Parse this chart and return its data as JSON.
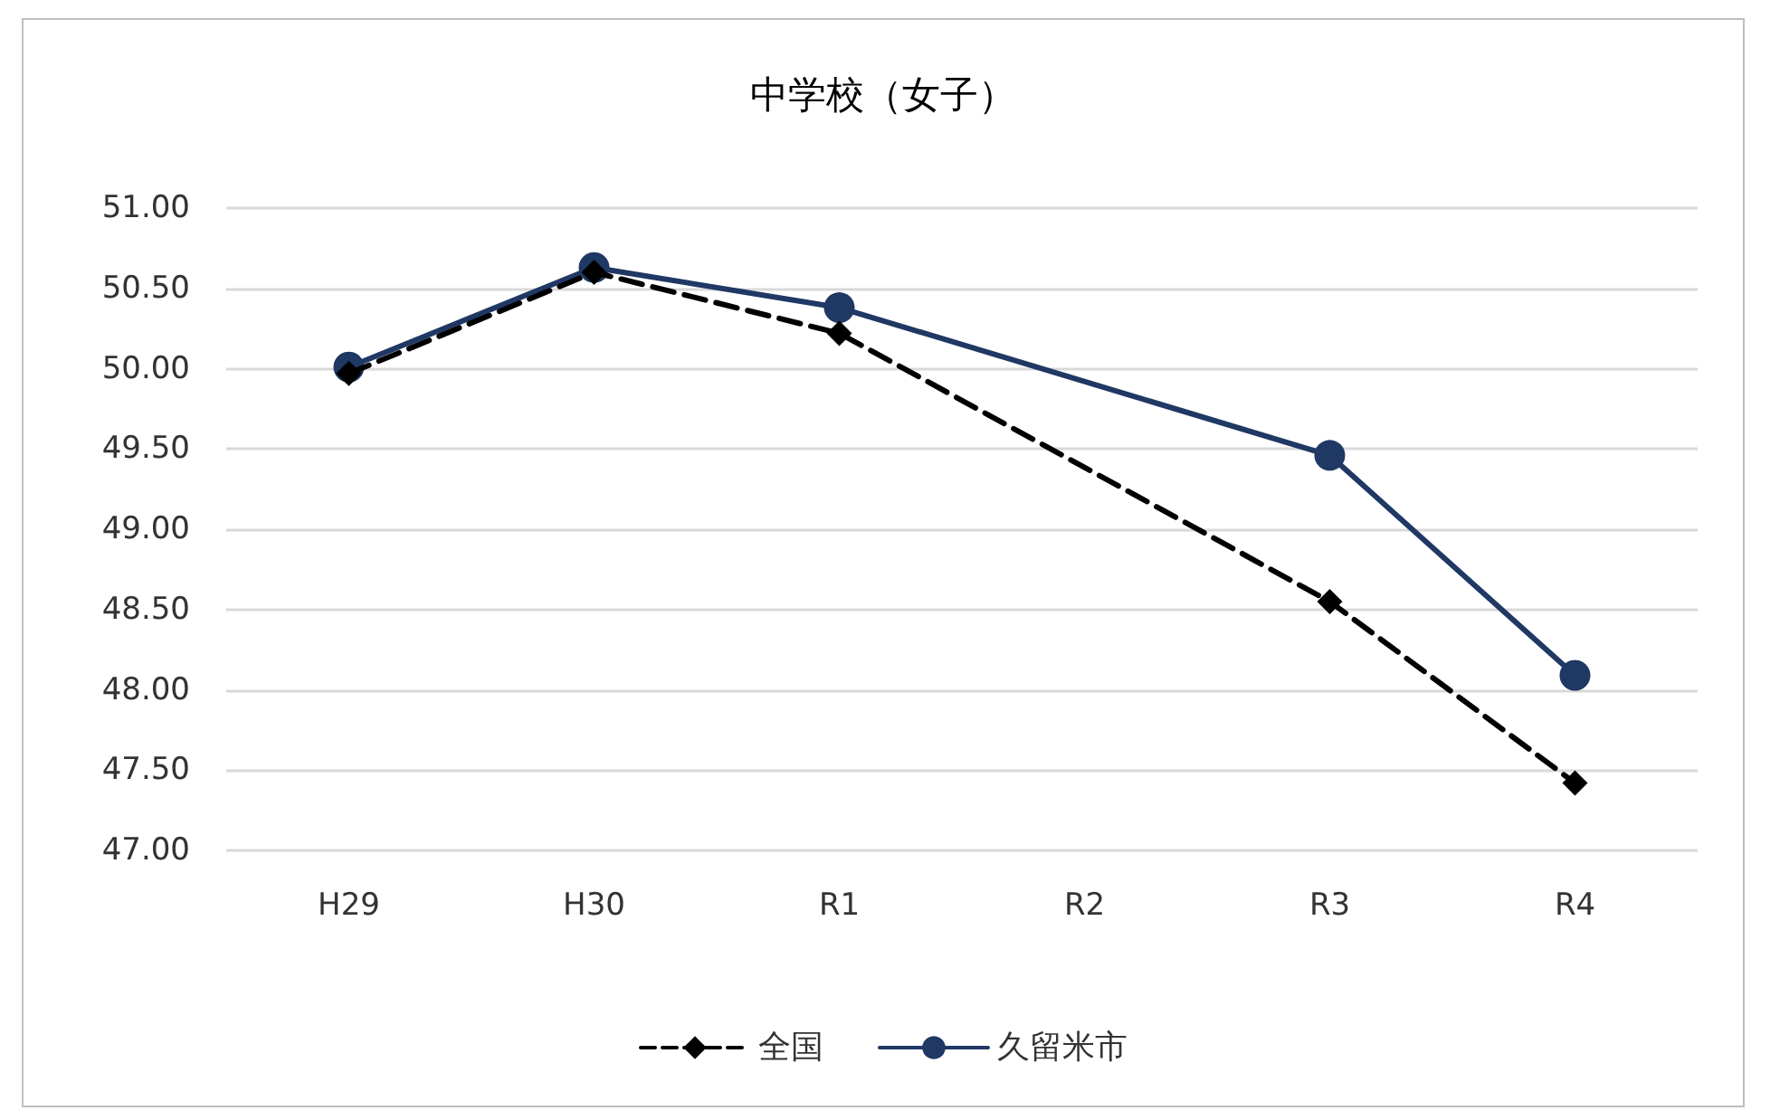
{
  "chart_data": {
    "type": "line",
    "title": "中学校（女子）",
    "categories": [
      "H29",
      "H30",
      "R1",
      "R2",
      "R3",
      "R4"
    ],
    "series": [
      {
        "name": "全国",
        "color": "#000000",
        "values": [
          49.97,
          50.6,
          50.22,
          null,
          48.55,
          47.42
        ],
        "marker": "diamond",
        "line_style": "dashed"
      },
      {
        "name": "久留米市",
        "color": "#1f3864",
        "values": [
          50.01,
          50.63,
          50.38,
          null,
          49.46,
          48.09
        ],
        "marker": "circle",
        "line_style": "solid"
      }
    ],
    "ylim": [
      47,
      51
    ],
    "yticks": [
      {
        "value": 47,
        "label": "47.00"
      },
      {
        "value": 47.5,
        "label": "47.50"
      },
      {
        "value": 48,
        "label": "48.00"
      },
      {
        "value": 48.5,
        "label": "48.50"
      },
      {
        "value": 49,
        "label": "49.00"
      },
      {
        "value": 49.5,
        "label": "49.50"
      },
      {
        "value": 50,
        "label": "50.00"
      },
      {
        "value": 50.5,
        "label": "50.50"
      },
      {
        "value": 51,
        "label": "51.00"
      }
    ],
    "grid": "y",
    "legend": "bottom"
  }
}
